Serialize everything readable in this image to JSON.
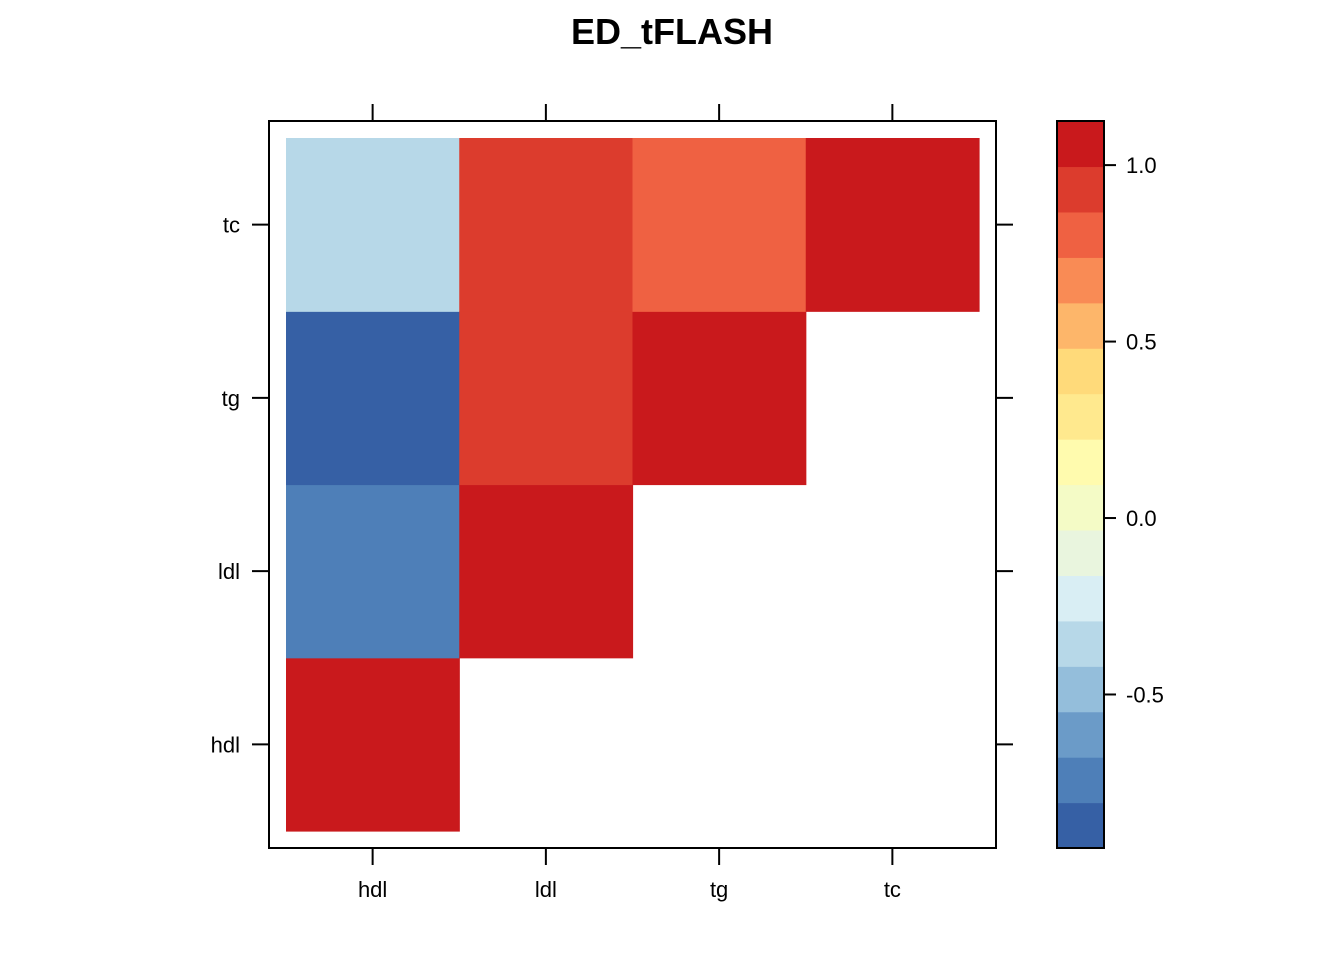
{
  "chart_data": {
    "type": "heatmap",
    "title": "ED_tFLASH",
    "xlabel": "",
    "ylabel": "",
    "x_categories": [
      "hdl",
      "ldl",
      "tg",
      "tc"
    ],
    "y_categories": [
      "hdl",
      "ldl",
      "tg",
      "tc"
    ],
    "cells": [
      {
        "x": "hdl",
        "y": "hdl",
        "value": 1.0
      },
      {
        "x": "hdl",
        "y": "ldl",
        "value": -0.78
      },
      {
        "x": "hdl",
        "y": "tg",
        "value": -0.9
      },
      {
        "x": "hdl",
        "y": "tc",
        "value": -0.4
      },
      {
        "x": "ldl",
        "y": "ldl",
        "value": 1.0
      },
      {
        "x": "ldl",
        "y": "tg",
        "value": 0.95
      },
      {
        "x": "ldl",
        "y": "tc",
        "value": 0.95
      },
      {
        "x": "tg",
        "y": "tg",
        "value": 1.0
      },
      {
        "x": "tg",
        "y": "tc",
        "value": 0.82
      },
      {
        "x": "tc",
        "y": "tc",
        "value": 1.0
      }
    ],
    "colorbar": {
      "range": [
        -0.935,
        1.125
      ],
      "ticks": [
        {
          "value": 1.0,
          "label": "1.0"
        },
        {
          "value": 0.5,
          "label": "0.5"
        },
        {
          "value": 0.0,
          "label": "0.0"
        },
        {
          "value": -0.5,
          "label": "-0.5"
        }
      ],
      "colors": [
        "#3660A5",
        "#4E7FB8",
        "#6B9BC8",
        "#94BEDB",
        "#B7D8E8",
        "#D9EEF4",
        "#E9F5DE",
        "#F4FBC6",
        "#FFFBAE",
        "#FFE98E",
        "#FFDA7A",
        "#FDB66A",
        "#F98B55",
        "#EF6142",
        "#DC3C2D",
        "#C9191C"
      ]
    },
    "grid": false,
    "legend": "right"
  }
}
